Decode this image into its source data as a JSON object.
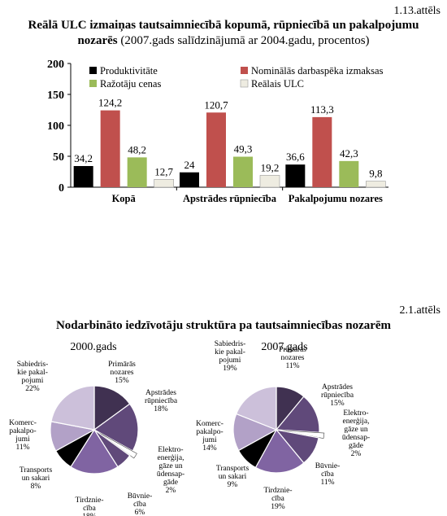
{
  "figure1": {
    "number": "1.13.attēls",
    "title_bold": "Reālā ULC izmaiņas tautsaimniecībā kopumā, rūpniecībā un pakalpojumu",
    "title_bold_line2": "nozarēs",
    "title_normal": " (2007.gads salīdzinājumā ar 2004.gadu, procentos)"
  },
  "figure2": {
    "number": "2.1.attēls",
    "title": "Nodarbināto iedzīvotāju struktūra pa tautsaimniecības nozarēm"
  },
  "colors": {
    "black": "#000000",
    "red": "#c0504d",
    "green": "#9bbb59",
    "cream": "#eeece1",
    "pie_dark": "#403151",
    "pie_mid": "#60497a",
    "pie_med": "#8064a2",
    "pie_light": "#b2a1c7",
    "pie_lighter": "#ccc0da",
    "white": "#ffffff"
  },
  "chart_data": [
    {
      "type": "bar",
      "categories": [
        "Kopā",
        "Apstrādes rūpniecība",
        "Pakalpojumu nozares"
      ],
      "series": [
        {
          "name": "Produktivitāte",
          "values": [
            34.2,
            24,
            36.6
          ],
          "labels": [
            "34,2",
            "24",
            "36,6"
          ],
          "color": "#000000"
        },
        {
          "name": "Nominālās darbaspēka izmaksas",
          "values": [
            124.2,
            120.7,
            113.3
          ],
          "labels": [
            "124,2",
            "120,7",
            "113,3"
          ],
          "color": "#c0504d"
        },
        {
          "name": "Ražotāju cenas",
          "values": [
            48.2,
            49.3,
            42.3
          ],
          "labels": [
            "48,2",
            "49,3",
            "42,3"
          ],
          "color": "#9bbb59"
        },
        {
          "name": "Reālais ULC",
          "values": [
            12.7,
            19.2,
            9.8
          ],
          "labels": [
            "12,7",
            "19,2",
            "9,8"
          ],
          "color": "#eeece1"
        }
      ],
      "yticks": [
        "0",
        "50",
        "100",
        "150",
        "200"
      ],
      "ylim": [
        0,
        200
      ],
      "legend": "top"
    },
    {
      "type": "pie",
      "title": "2000.gads",
      "slices": [
        {
          "label": [
            "Primārās",
            "nozares",
            "15%"
          ],
          "value": 15,
          "color": "#403151"
        },
        {
          "label": [
            "Apstrādes",
            "rūpniecība",
            "18%"
          ],
          "value": 18,
          "color": "#60497a"
        },
        {
          "label": [
            "Elektro-",
            "enerģija,",
            "gāze un",
            "ūdensap-",
            "gāde",
            "2%"
          ],
          "value": 2,
          "color": "#ffffff"
        },
        {
          "label": [
            "Būvnie-",
            "cība",
            "6%"
          ],
          "value": 6,
          "color": "#60497a"
        },
        {
          "label": [
            "Tirdznie-",
            "cība",
            "18%"
          ],
          "value": 18,
          "color": "#8064a2"
        },
        {
          "label": [
            "Transports",
            "un sakari",
            "8%"
          ],
          "value": 8,
          "color": "#000000"
        },
        {
          "label": [
            "Komerc-",
            "pakalpo-",
            "jumi",
            "11%"
          ],
          "value": 11,
          "color": "#b2a1c7"
        },
        {
          "label": [
            "Sabiedris-",
            "kie pakal-",
            "pojumi",
            "22%"
          ],
          "value": 22,
          "color": "#ccc0da"
        }
      ]
    },
    {
      "type": "pie",
      "title": "2007.gads",
      "slices": [
        {
          "label": [
            "Primārās",
            "nozares",
            "11%"
          ],
          "value": 11,
          "color": "#403151"
        },
        {
          "label": [
            "Apstrādes",
            "rūpniecība",
            "15%"
          ],
          "value": 15,
          "color": "#60497a"
        },
        {
          "label": [
            "Elektro-",
            "enerģija,",
            "gāze un",
            "ūdensap-",
            "gāde",
            "2%"
          ],
          "value": 2,
          "color": "#ffffff"
        },
        {
          "label": [
            "Būvnie-",
            "cība",
            "11%"
          ],
          "value": 11,
          "color": "#60497a"
        },
        {
          "label": [
            "Tirdznie-",
            "cība",
            "19%"
          ],
          "value": 19,
          "color": "#8064a2"
        },
        {
          "label": [
            "Transports",
            "un sakari",
            "9%"
          ],
          "value": 9,
          "color": "#000000"
        },
        {
          "label": [
            "Komerc-",
            "pakalpo-",
            "jumi",
            "14%"
          ],
          "value": 14,
          "color": "#b2a1c7"
        },
        {
          "label": [
            "Sabiedris-",
            "kie pakal-",
            "pojumi",
            "19%"
          ],
          "value": 19,
          "color": "#ccc0da"
        }
      ]
    }
  ]
}
